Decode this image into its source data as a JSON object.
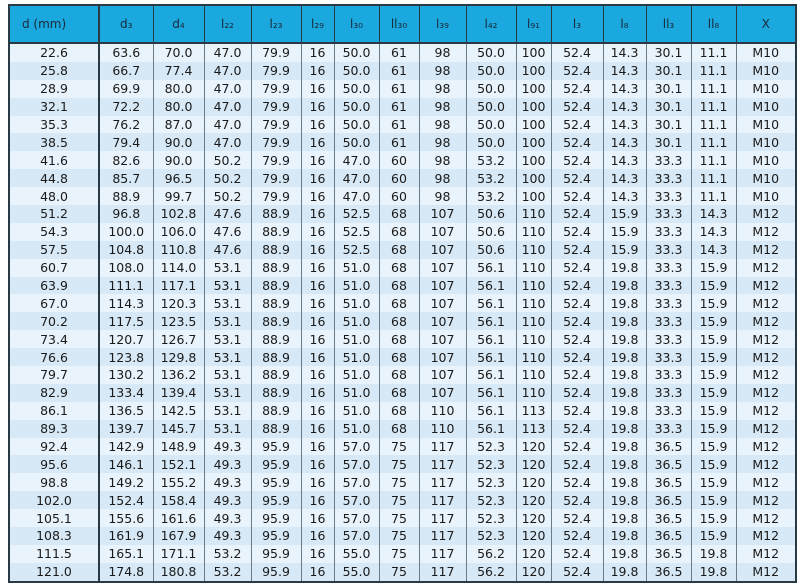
{
  "colors": {
    "header_bg": "#1ba8df",
    "row_light": "#e9f3fb",
    "row_dark": "#d7e9f6",
    "border": "#2a3a45"
  },
  "table": {
    "headers": [
      "d    (mm)",
      "d₃",
      "d₄",
      "l₂₂",
      "l₂₃",
      "l₂₉",
      "l₃₀",
      "ll₃₀",
      "l₃₉",
      "l₄₂",
      "l₉₁",
      "l₃",
      "l₈",
      "ll₃",
      "ll₈",
      "X"
    ],
    "rows": [
      [
        "22.6",
        "63.6",
        "70.0",
        "47.0",
        "79.9",
        "16",
        "50.0",
        "61",
        "98",
        "50.0",
        "100",
        "52.4",
        "14.3",
        "30.1",
        "11.1",
        "M10"
      ],
      [
        "25.8",
        "66.7",
        "77.4",
        "47.0",
        "79.9",
        "16",
        "50.0",
        "61",
        "98",
        "50.0",
        "100",
        "52.4",
        "14.3",
        "30.1",
        "11.1",
        "M10"
      ],
      [
        "28.9",
        "69.9",
        "80.0",
        "47.0",
        "79.9",
        "16",
        "50.0",
        "61",
        "98",
        "50.0",
        "100",
        "52.4",
        "14.3",
        "30.1",
        "11.1",
        "M10"
      ],
      [
        "32.1",
        "72.2",
        "80.0",
        "47.0",
        "79.9",
        "16",
        "50.0",
        "61",
        "98",
        "50.0",
        "100",
        "52.4",
        "14.3",
        "30.1",
        "11.1",
        "M10"
      ],
      [
        "35.3",
        "76.2",
        "87.0",
        "47.0",
        "79.9",
        "16",
        "50.0",
        "61",
        "98",
        "50.0",
        "100",
        "52.4",
        "14.3",
        "30.1",
        "11.1",
        "M10"
      ],
      [
        "38.5",
        "79.4",
        "90.0",
        "47.0",
        "79.9",
        "16",
        "50.0",
        "61",
        "98",
        "50.0",
        "100",
        "52.4",
        "14.3",
        "30.1",
        "11.1",
        "M10"
      ],
      [
        "41.6",
        "82.6",
        "90.0",
        "50.2",
        "79.9",
        "16",
        "47.0",
        "60",
        "98",
        "53.2",
        "100",
        "52.4",
        "14.3",
        "33.3",
        "11.1",
        "M10"
      ],
      [
        "44.8",
        "85.7",
        "96.5",
        "50.2",
        "79.9",
        "16",
        "47.0",
        "60",
        "98",
        "53.2",
        "100",
        "52.4",
        "14.3",
        "33.3",
        "11.1",
        "M10"
      ],
      [
        "48.0",
        "88.9",
        "99.7",
        "50.2",
        "79.9",
        "16",
        "47.0",
        "60",
        "98",
        "53.2",
        "100",
        "52.4",
        "14.3",
        "33.3",
        "11.1",
        "M10"
      ],
      [
        "51.2",
        "96.8",
        "102.8",
        "47.6",
        "88.9",
        "16",
        "52.5",
        "68",
        "107",
        "50.6",
        "110",
        "52.4",
        "15.9",
        "33.3",
        "14.3",
        "M12"
      ],
      [
        "54.3",
        "100.0",
        "106.0",
        "47.6",
        "88.9",
        "16",
        "52.5",
        "68",
        "107",
        "50.6",
        "110",
        "52.4",
        "15.9",
        "33.3",
        "14.3",
        "M12"
      ],
      [
        "57.5",
        "104.8",
        "110.8",
        "47.6",
        "88.9",
        "16",
        "52.5",
        "68",
        "107",
        "50.6",
        "110",
        "52.4",
        "15.9",
        "33.3",
        "14.3",
        "M12"
      ],
      [
        "60.7",
        "108.0",
        "114.0",
        "53.1",
        "88.9",
        "16",
        "51.0",
        "68",
        "107",
        "56.1",
        "110",
        "52.4",
        "19.8",
        "33.3",
        "15.9",
        "M12"
      ],
      [
        "63.9",
        "111.1",
        "117.1",
        "53.1",
        "88.9",
        "16",
        "51.0",
        "68",
        "107",
        "56.1",
        "110",
        "52.4",
        "19.8",
        "33.3",
        "15.9",
        "M12"
      ],
      [
        "67.0",
        "114.3",
        "120.3",
        "53.1",
        "88.9",
        "16",
        "51.0",
        "68",
        "107",
        "56.1",
        "110",
        "52.4",
        "19.8",
        "33.3",
        "15.9",
        "M12"
      ],
      [
        "70.2",
        "117.5",
        "123.5",
        "53.1",
        "88.9",
        "16",
        "51.0",
        "68",
        "107",
        "56.1",
        "110",
        "52.4",
        "19.8",
        "33.3",
        "15.9",
        "M12"
      ],
      [
        "73.4",
        "120.7",
        "126.7",
        "53.1",
        "88.9",
        "16",
        "51.0",
        "68",
        "107",
        "56.1",
        "110",
        "52.4",
        "19.8",
        "33.3",
        "15.9",
        "M12"
      ],
      [
        "76.6",
        "123.8",
        "129.8",
        "53.1",
        "88.9",
        "16",
        "51.0",
        "68",
        "107",
        "56.1",
        "110",
        "52.4",
        "19.8",
        "33.3",
        "15.9",
        "M12"
      ],
      [
        "79.7",
        "130.2",
        "136.2",
        "53.1",
        "88.9",
        "16",
        "51.0",
        "68",
        "107",
        "56.1",
        "110",
        "52.4",
        "19.8",
        "33.3",
        "15.9",
        "M12"
      ],
      [
        "82.9",
        "133.4",
        "139.4",
        "53.1",
        "88.9",
        "16",
        "51.0",
        "68",
        "107",
        "56.1",
        "110",
        "52.4",
        "19.8",
        "33.3",
        "15.9",
        "M12"
      ],
      [
        "86.1",
        "136.5",
        "142.5",
        "53.1",
        "88.9",
        "16",
        "51.0",
        "68",
        "110",
        "56.1",
        "113",
        "52.4",
        "19.8",
        "33.3",
        "15.9",
        "M12"
      ],
      [
        "89.3",
        "139.7",
        "145.7",
        "53.1",
        "88.9",
        "16",
        "51.0",
        "68",
        "110",
        "56.1",
        "113",
        "52.4",
        "19.8",
        "33.3",
        "15.9",
        "M12"
      ],
      [
        "92.4",
        "142.9",
        "148.9",
        "49.3",
        "95.9",
        "16",
        "57.0",
        "75",
        "117",
        "52.3",
        "120",
        "52.4",
        "19.8",
        "36.5",
        "15.9",
        "M12"
      ],
      [
        "95.6",
        "146.1",
        "152.1",
        "49.3",
        "95.9",
        "16",
        "57.0",
        "75",
        "117",
        "52.3",
        "120",
        "52.4",
        "19.8",
        "36.5",
        "15.9",
        "M12"
      ],
      [
        "98.8",
        "149.2",
        "155.2",
        "49.3",
        "95.9",
        "16",
        "57.0",
        "75",
        "117",
        "52.3",
        "120",
        "52.4",
        "19.8",
        "36.5",
        "15.9",
        "M12"
      ],
      [
        "102.0",
        "152.4",
        "158.4",
        "49.3",
        "95.9",
        "16",
        "57.0",
        "75",
        "117",
        "52.3",
        "120",
        "52.4",
        "19.8",
        "36.5",
        "15.9",
        "M12"
      ],
      [
        "105.1",
        "155.6",
        "161.6",
        "49.3",
        "95.9",
        "16",
        "57.0",
        "75",
        "117",
        "52.3",
        "120",
        "52.4",
        "19.8",
        "36.5",
        "15.9",
        "M12"
      ],
      [
        "108.3",
        "161.9",
        "167.9",
        "49.3",
        "95.9",
        "16",
        "57.0",
        "75",
        "117",
        "52.3",
        "120",
        "52.4",
        "19.8",
        "36.5",
        "15.9",
        "M12"
      ],
      [
        "111.5",
        "165.1",
        "171.1",
        "53.2",
        "95.9",
        "16",
        "55.0",
        "75",
        "117",
        "56.2",
        "120",
        "52.4",
        "19.8",
        "36.5",
        "19.8",
        "M12"
      ],
      [
        "121.0",
        "174.8",
        "180.8",
        "53.2",
        "95.9",
        "16",
        "55.0",
        "75",
        "117",
        "56.2",
        "120",
        "52.4",
        "19.8",
        "36.5",
        "19.8",
        "M12"
      ]
    ]
  }
}
